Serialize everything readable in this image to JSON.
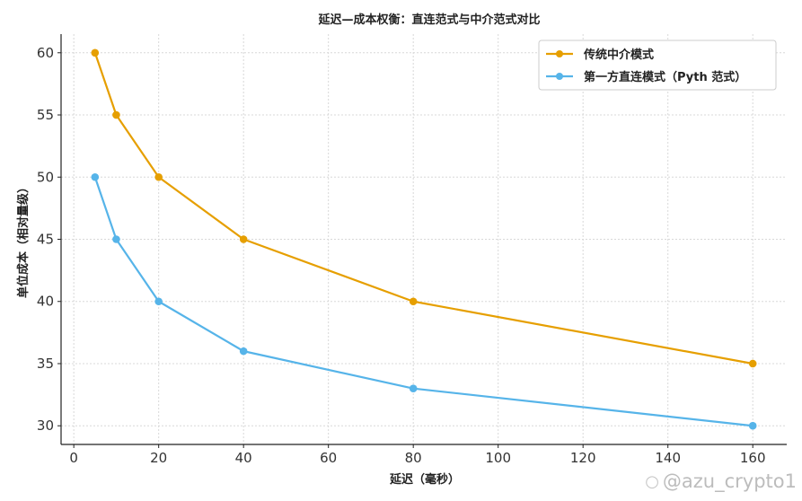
{
  "chart_data": {
    "type": "line",
    "title": "延迟—成本权衡：直连范式与中介范式对比",
    "xlabel": "延迟（毫秒）",
    "ylabel": "单位成本（相对量级）",
    "xlim": [
      -3,
      168
    ],
    "ylim": [
      28.5,
      61.5
    ],
    "xticks": [
      0,
      20,
      40,
      60,
      80,
      100,
      120,
      140,
      160
    ],
    "yticks": [
      30,
      35,
      40,
      45,
      50,
      55,
      60
    ],
    "grid": true,
    "legend_position": "top-right",
    "x": [
      5,
      10,
      20,
      40,
      80,
      160
    ],
    "series": [
      {
        "name": "传统中介模式",
        "color": "#E69F00",
        "values": [
          60,
          55,
          50,
          45,
          40,
          35
        ]
      },
      {
        "name": "第一方直连模式（Pyth 范式）",
        "color": "#56B4E9",
        "values": [
          50,
          45,
          40,
          36,
          33,
          30
        ]
      }
    ]
  },
  "watermark": {
    "text": "@azu_crypto1",
    "icon": "weibo-logo-icon"
  }
}
